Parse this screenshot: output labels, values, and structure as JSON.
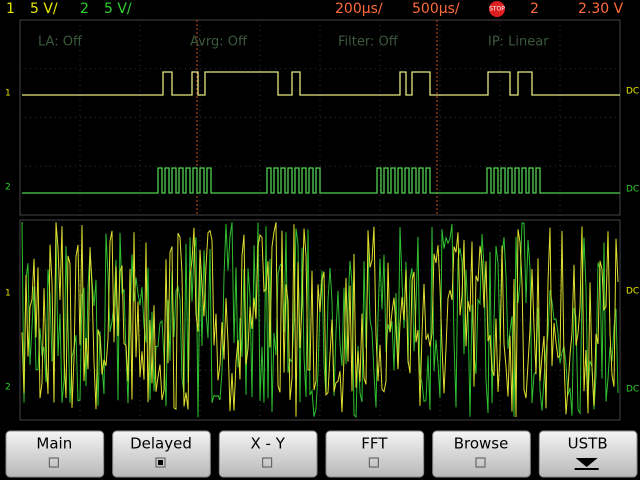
{
  "status": {
    "ch1_label": "1",
    "ch1_scale": "5 V/",
    "ch2_label": "2",
    "ch2_scale": "5 V/",
    "time_base": "200µs/",
    "delay": "500µs/",
    "run_state": "STOP",
    "trigger_source": "2",
    "trigger_level": "2.30 V"
  },
  "info": {
    "la": "LA: Off",
    "avrg": "Avrg: Off",
    "filter": "Filter: Off",
    "ip": "IP: Linear"
  },
  "markers": {
    "ch1": "1",
    "ch2": "2",
    "coupling": "DC"
  },
  "softkeys": [
    "Main",
    "Delayed",
    "X - Y",
    "FFT",
    "Browse",
    "USTB"
  ]
}
